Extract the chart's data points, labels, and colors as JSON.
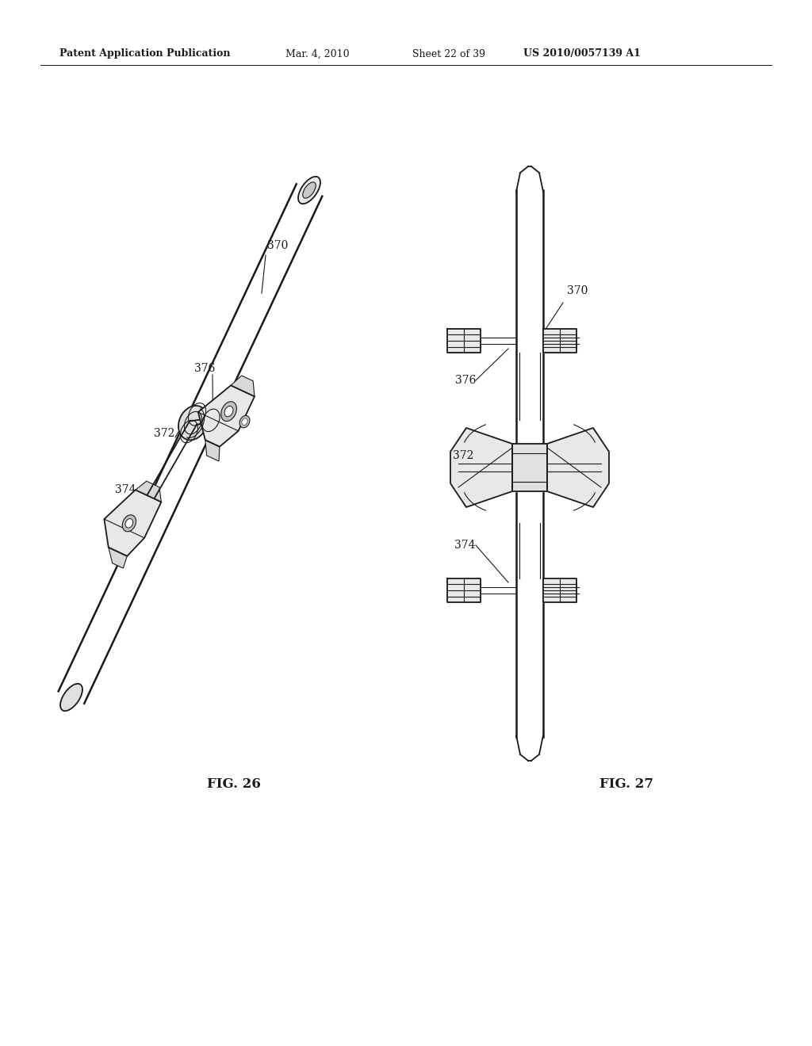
{
  "bg_color": "#ffffff",
  "line_color": "#1a1a1a",
  "header_text": "Patent Application Publication",
  "header_date": "Mar. 4, 2010",
  "header_sheet": "Sheet 22 of 39",
  "header_patent": "US 2010/0057139 A1",
  "fig26_label": "FIG. 26",
  "fig27_label": "FIG. 27"
}
